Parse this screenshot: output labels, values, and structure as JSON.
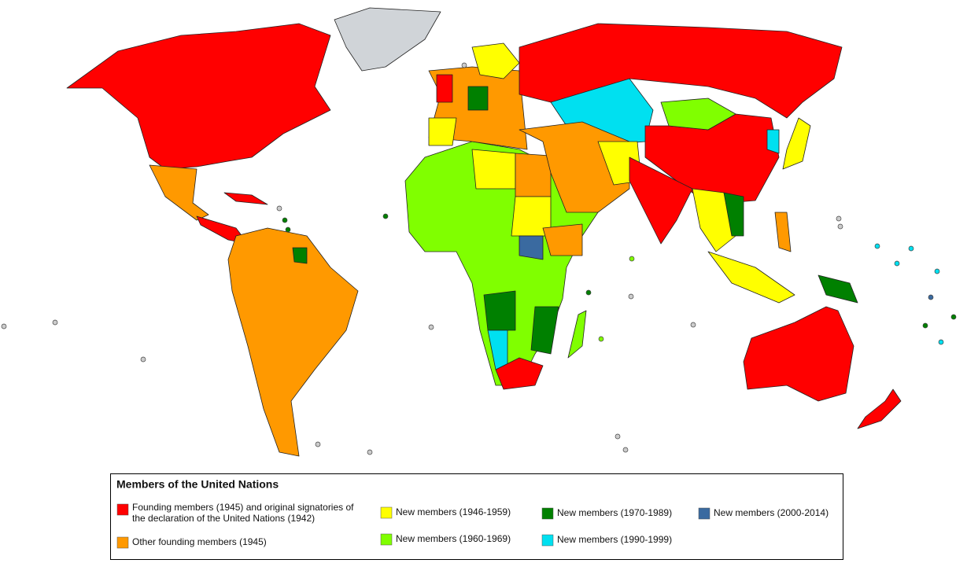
{
  "legend": {
    "title": "Members of the United Nations",
    "items": [
      {
        "lines": [
          "Founding members (1945) and original signatories of",
          "the declaration of the United Nations (1942)"
        ],
        "color": "#ff0000"
      },
      {
        "lines": [
          "Other founding members (1945)"
        ],
        "color": "#ff9900"
      },
      {
        "lines": [
          "New members (1946-1959)"
        ],
        "color": "#ffff00"
      },
      {
        "lines": [
          "New members (1960-1969)"
        ],
        "color": "#80ff00"
      },
      {
        "lines": [
          "New members (1970-1989)"
        ],
        "color": "#008000"
      },
      {
        "lines": [
          "New members (1990-1999)"
        ],
        "color": "#00e0f0"
      },
      {
        "lines": [
          "New members (2000-2014)"
        ],
        "color": "#3a6aa0"
      }
    ]
  }
}
